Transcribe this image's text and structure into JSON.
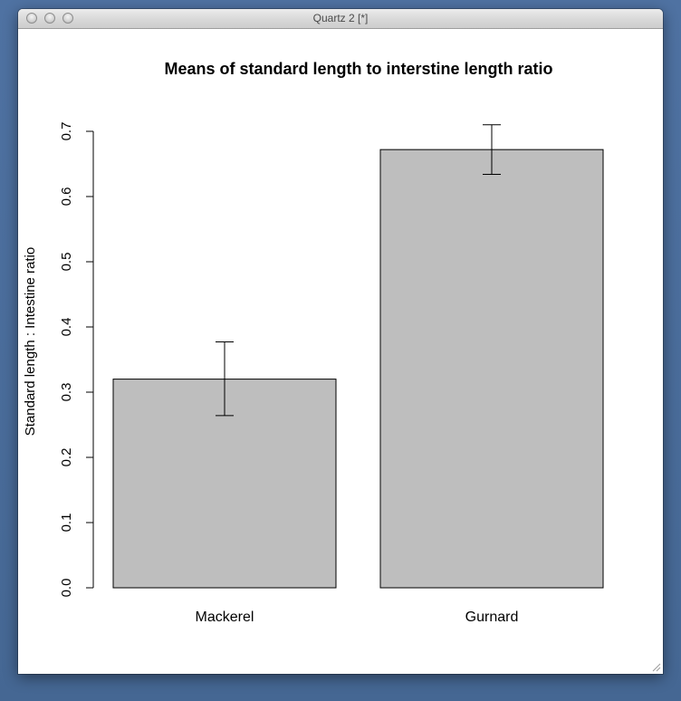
{
  "window": {
    "title": "Quartz 2 [*]"
  },
  "chart_data": {
    "type": "bar",
    "title": "Means of standard length to interstine length ratio",
    "xlabel": "",
    "ylabel": "Standard length : Intestine ratio",
    "categories": [
      "Mackerel",
      "Gurnard"
    ],
    "values": [
      0.32,
      0.672
    ],
    "error_bars": [
      {
        "low": 0.264,
        "high": 0.377
      },
      {
        "low": 0.634,
        "high": 0.71
      }
    ],
    "ylim": [
      0,
      0.7
    ],
    "yticks": [
      0.0,
      0.1,
      0.2,
      0.3,
      0.4,
      0.5,
      0.6,
      0.7
    ],
    "ytick_labels": [
      "0.0",
      "0.1",
      "0.2",
      "0.3",
      "0.4",
      "0.5",
      "0.6",
      "0.7"
    ],
    "bar_color": "#bebebe",
    "grid": false,
    "legend": "none"
  }
}
